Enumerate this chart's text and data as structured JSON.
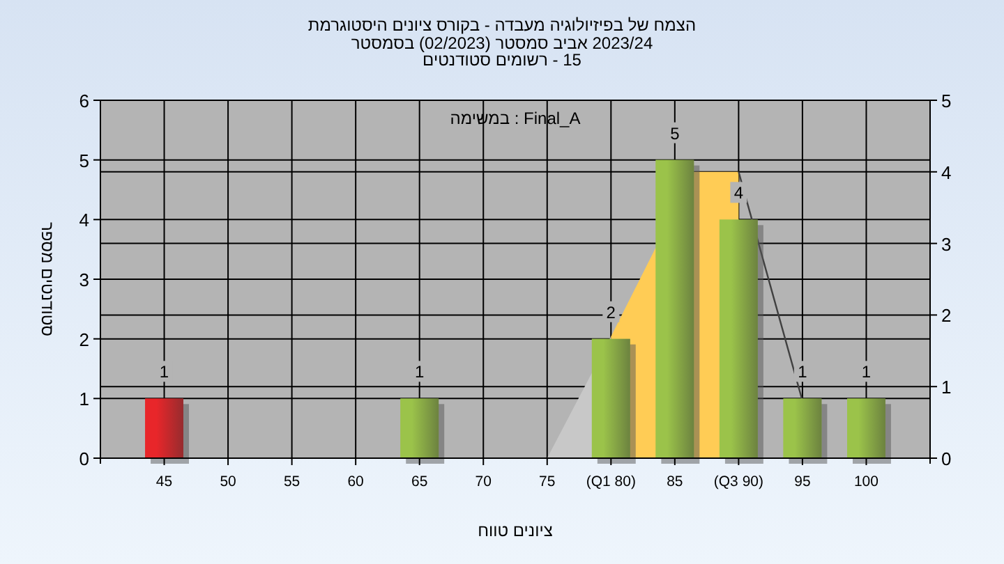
{
  "chart_data": {
    "type": "bar",
    "title": "היסטוגרמת ציונים בקורס - מעבדה בפיזיולוגיה של הצמח",
    "subtitle": "בסמסטר (02/2023) סמסטר אביב 2023/24\nסטודנטים רשומים - 15",
    "xlabel": "טווח ציונים",
    "ylabel": "מספר סטודנטים",
    "annotations": [
      "במשימה : Final_A"
    ],
    "x": [
      45,
      50,
      55,
      60,
      65,
      70,
      75,
      80,
      85,
      90,
      95,
      100
    ],
    "series": [
      {
        "type": "area",
        "axis": "y2",
        "color": "#c8c8c8",
        "x": [
          75,
          80
        ],
        "values": [
          0,
          1.7
        ]
      },
      {
        "type": "area",
        "axis": "y2",
        "color": "#ffcc55",
        "x": [
          80,
          86.5,
          90
        ],
        "values": [
          1.7,
          4,
          4
        ]
      },
      {
        "type": "line",
        "axis": "y2",
        "color": "#404040",
        "x": [
          90,
          95
        ],
        "values": [
          4,
          0.8
        ]
      },
      {
        "colors": [
          "#e8262a",
          "#9bc34a",
          "#9bc34a",
          "#9bc34a",
          "#9bc34a",
          "#9bc34a",
          "#9bc34a",
          "#9bc34a",
          "#9bc34a",
          "#9bc34a",
          "#9bc34a",
          "#9bc34a"
        ],
        "values": [
          1,
          0,
          0,
          0,
          1,
          0,
          0,
          2,
          5,
          4,
          1,
          1
        ],
        "value_labels": [
          "1",
          null,
          null,
          null,
          "1",
          null,
          null,
          "2",
          "5",
          "4",
          "1",
          "1"
        ]
      }
    ],
    "xlim": [
      40,
      105
    ],
    "xticks": [
      45,
      50,
      55,
      60,
      65,
      70,
      75,
      {
        "value": 80,
        "label": "(Q1 80)"
      },
      85,
      {
        "value": 90,
        "label": "(Q3 90)"
      },
      95,
      100
    ],
    "ylim": [
      0,
      6
    ],
    "yticks": [
      0,
      1,
      2,
      3,
      4,
      5,
      6
    ],
    "y2lim": [
      0,
      5
    ],
    "y2ticks": [
      0,
      1,
      2,
      3,
      4,
      5
    ],
    "grid": true
  }
}
